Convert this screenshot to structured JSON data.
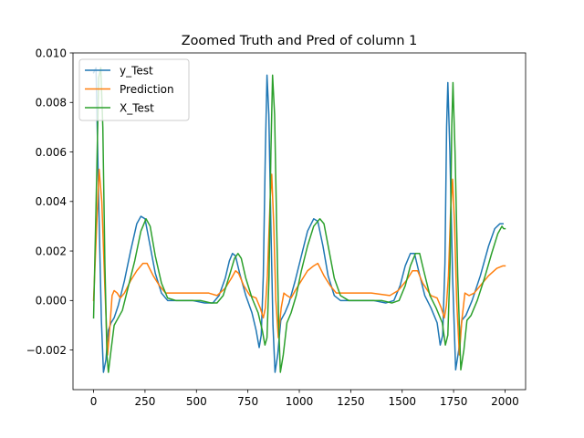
{
  "chart_data": {
    "type": "line",
    "title": "Zoomed Truth and Pred of column 1",
    "xlabel": "",
    "ylabel": "",
    "xlim": [
      -100,
      2100
    ],
    "ylim": [
      -0.0036,
      0.01
    ],
    "xticks": [
      0,
      250,
      500,
      750,
      1000,
      1250,
      1500,
      1750,
      2000
    ],
    "xtick_labels": [
      "0",
      "250",
      "500",
      "750",
      "1000",
      "1250",
      "1500",
      "1750",
      "2000"
    ],
    "yticks": [
      -0.002,
      0.0,
      0.002,
      0.004,
      0.006,
      0.008,
      0.01
    ],
    "ytick_labels": [
      "−0.002",
      "0.000",
      "0.002",
      "0.004",
      "0.006",
      "0.008",
      "0.010"
    ],
    "grid": false,
    "legend_position": "top-left",
    "series": [
      {
        "name": "y_Test",
        "color": "#1f77b4",
        "points": [
          [
            0,
            0.0092
          ],
          [
            12,
            0.0094
          ],
          [
            25,
            0.004
          ],
          [
            38,
            -0.0008
          ],
          [
            48,
            -0.0029
          ],
          [
            60,
            -0.0024
          ],
          [
            72,
            -0.0012
          ],
          [
            85,
            -0.0009
          ],
          [
            100,
            -0.0007
          ],
          [
            120,
            -0.0002
          ],
          [
            150,
            0.0008
          ],
          [
            180,
            0.002
          ],
          [
            210,
            0.0031
          ],
          [
            230,
            0.0034
          ],
          [
            250,
            0.0033
          ],
          [
            275,
            0.0022
          ],
          [
            300,
            0.0011
          ],
          [
            330,
            0.0003
          ],
          [
            360,
            0.0
          ],
          [
            420,
            0.0
          ],
          [
            480,
            0.0
          ],
          [
            540,
            -0.0001
          ],
          [
            580,
            -0.0001
          ],
          [
            610,
            0.0002
          ],
          [
            640,
            0.0009
          ],
          [
            660,
            0.0016
          ],
          [
            675,
            0.0019
          ],
          [
            690,
            0.0018
          ],
          [
            710,
            0.0011
          ],
          [
            740,
            0.0002
          ],
          [
            770,
            -0.0005
          ],
          [
            790,
            -0.0012
          ],
          [
            805,
            -0.0019
          ],
          [
            815,
            -0.0014
          ],
          [
            825,
            0.001
          ],
          [
            835,
            0.006
          ],
          [
            843,
            0.0091
          ],
          [
            852,
            0.0075
          ],
          [
            862,
            0.003
          ],
          [
            872,
            -0.001
          ],
          [
            882,
            -0.0029
          ],
          [
            895,
            -0.0022
          ],
          [
            910,
            -0.0008
          ],
          [
            930,
            -0.0005
          ],
          [
            950,
            -0.0001
          ],
          [
            980,
            0.0008
          ],
          [
            1010,
            0.0018
          ],
          [
            1040,
            0.0028
          ],
          [
            1070,
            0.0033
          ],
          [
            1090,
            0.0032
          ],
          [
            1115,
            0.0022
          ],
          [
            1140,
            0.001
          ],
          [
            1170,
            0.0002
          ],
          [
            1200,
            0.0
          ],
          [
            1280,
            0.0
          ],
          [
            1360,
            0.0
          ],
          [
            1420,
            -0.0001
          ],
          [
            1460,
            0.0
          ],
          [
            1490,
            0.0006
          ],
          [
            1515,
            0.0014
          ],
          [
            1540,
            0.0019
          ],
          [
            1560,
            0.0019
          ],
          [
            1580,
            0.0012
          ],
          [
            1610,
            0.0002
          ],
          [
            1640,
            -0.0003
          ],
          [
            1670,
            -0.0009
          ],
          [
            1685,
            -0.0018
          ],
          [
            1697,
            -0.0014
          ],
          [
            1708,
            0.0015
          ],
          [
            1716,
            0.007
          ],
          [
            1722,
            0.0088
          ],
          [
            1732,
            0.006
          ],
          [
            1745,
            0.001
          ],
          [
            1760,
            -0.0028
          ],
          [
            1775,
            -0.002
          ],
          [
            1790,
            -0.0008
          ],
          [
            1810,
            -0.0006
          ],
          [
            1840,
            0.0
          ],
          [
            1880,
            0.001
          ],
          [
            1920,
            0.0022
          ],
          [
            1950,
            0.0029
          ],
          [
            1975,
            0.0031
          ],
          [
            1990,
            0.0031
          ]
        ]
      },
      {
        "name": "Prediction",
        "color": "#ff7f0e",
        "points": [
          [
            0,
            0.0
          ],
          [
            15,
            0.003
          ],
          [
            27,
            0.0053
          ],
          [
            40,
            0.004
          ],
          [
            55,
            0.0005
          ],
          [
            68,
            -0.0022
          ],
          [
            78,
            -0.0012
          ],
          [
            90,
            0.0002
          ],
          [
            100,
            0.0004
          ],
          [
            115,
            0.0003
          ],
          [
            130,
            0.0001
          ],
          [
            150,
            0.0003
          ],
          [
            180,
            0.0008
          ],
          [
            210,
            0.0012
          ],
          [
            240,
            0.0015
          ],
          [
            260,
            0.0015
          ],
          [
            290,
            0.001
          ],
          [
            320,
            0.0006
          ],
          [
            350,
            0.0003
          ],
          [
            400,
            0.0003
          ],
          [
            480,
            0.0003
          ],
          [
            560,
            0.0003
          ],
          [
            600,
            0.0002
          ],
          [
            640,
            0.0005
          ],
          [
            670,
            0.0009
          ],
          [
            690,
            0.0012
          ],
          [
            705,
            0.0011
          ],
          [
            730,
            0.0006
          ],
          [
            760,
            0.0002
          ],
          [
            790,
            0.0001
          ],
          [
            810,
            -0.0003
          ],
          [
            825,
            -0.0007
          ],
          [
            835,
            -0.0003
          ],
          [
            845,
            0.001
          ],
          [
            858,
            0.004
          ],
          [
            866,
            0.0051
          ],
          [
            876,
            0.003
          ],
          [
            886,
            0.0
          ],
          [
            898,
            -0.0015
          ],
          [
            912,
            -0.0003
          ],
          [
            925,
            0.0003
          ],
          [
            940,
            0.0002
          ],
          [
            960,
            0.0001
          ],
          [
            980,
            0.0004
          ],
          [
            1010,
            0.0008
          ],
          [
            1040,
            0.0012
          ],
          [
            1070,
            0.0014
          ],
          [
            1090,
            0.0015
          ],
          [
            1120,
            0.001
          ],
          [
            1150,
            0.0006
          ],
          [
            1180,
            0.0003
          ],
          [
            1250,
            0.0003
          ],
          [
            1350,
            0.0003
          ],
          [
            1440,
            0.0002
          ],
          [
            1480,
            0.0004
          ],
          [
            1520,
            0.0008
          ],
          [
            1550,
            0.0012
          ],
          [
            1575,
            0.0012
          ],
          [
            1600,
            0.0007
          ],
          [
            1640,
            0.0002
          ],
          [
            1670,
            0.0001
          ],
          [
            1690,
            -0.0003
          ],
          [
            1705,
            -0.0007
          ],
          [
            1715,
            -0.0002
          ],
          [
            1725,
            0.001
          ],
          [
            1735,
            0.0035
          ],
          [
            1745,
            0.0049
          ],
          [
            1755,
            0.003
          ],
          [
            1765,
            0.0
          ],
          [
            1778,
            -0.0022
          ],
          [
            1790,
            -0.0008
          ],
          [
            1805,
            0.0003
          ],
          [
            1825,
            0.0002
          ],
          [
            1850,
            0.0003
          ],
          [
            1880,
            0.0006
          ],
          [
            1920,
            0.001
          ],
          [
            1960,
            0.0013
          ],
          [
            1990,
            0.0014
          ],
          [
            2000,
            0.0014
          ]
        ]
      },
      {
        "name": "X_Test",
        "color": "#2ca02c",
        "points": [
          [
            0,
            -0.0007
          ],
          [
            15,
            0.005
          ],
          [
            25,
            0.009
          ],
          [
            35,
            0.0094
          ],
          [
            45,
            0.007
          ],
          [
            55,
            0.0015
          ],
          [
            65,
            -0.0022
          ],
          [
            72,
            -0.0029
          ],
          [
            85,
            -0.002
          ],
          [
            100,
            -0.001
          ],
          [
            120,
            -0.0007
          ],
          [
            140,
            -0.0004
          ],
          [
            170,
            0.0006
          ],
          [
            200,
            0.0016
          ],
          [
            230,
            0.0028
          ],
          [
            255,
            0.0033
          ],
          [
            275,
            0.003
          ],
          [
            300,
            0.0018
          ],
          [
            330,
            0.0007
          ],
          [
            360,
            0.0001
          ],
          [
            400,
            0.0
          ],
          [
            460,
            0.0
          ],
          [
            520,
            0.0
          ],
          [
            570,
            -0.0001
          ],
          [
            600,
            -0.0001
          ],
          [
            630,
            0.0002
          ],
          [
            660,
            0.001
          ],
          [
            685,
            0.0017
          ],
          [
            702,
            0.0019
          ],
          [
            718,
            0.0017
          ],
          [
            740,
            0.0009
          ],
          [
            770,
            0.0001
          ],
          [
            800,
            -0.0005
          ],
          [
            820,
            -0.0012
          ],
          [
            833,
            -0.0018
          ],
          [
            843,
            -0.0015
          ],
          [
            853,
            0.001
          ],
          [
            862,
            0.006
          ],
          [
            870,
            0.0091
          ],
          [
            880,
            0.0075
          ],
          [
            890,
            0.003
          ],
          [
            900,
            -0.001
          ],
          [
            908,
            -0.0029
          ],
          [
            922,
            -0.0022
          ],
          [
            940,
            -0.0009
          ],
          [
            960,
            -0.0005
          ],
          [
            985,
            0.0002
          ],
          [
            1010,
            0.0012
          ],
          [
            1040,
            0.0022
          ],
          [
            1070,
            0.003
          ],
          [
            1100,
            0.0033
          ],
          [
            1120,
            0.0031
          ],
          [
            1145,
            0.002
          ],
          [
            1170,
            0.0009
          ],
          [
            1200,
            0.0002
          ],
          [
            1240,
            0.0
          ],
          [
            1320,
            0.0
          ],
          [
            1400,
            0.0
          ],
          [
            1450,
            -0.0001
          ],
          [
            1485,
            0.0
          ],
          [
            1515,
            0.0006
          ],
          [
            1540,
            0.0014
          ],
          [
            1565,
            0.0019
          ],
          [
            1585,
            0.0019
          ],
          [
            1605,
            0.0012
          ],
          [
            1635,
            0.0002
          ],
          [
            1665,
            -0.0003
          ],
          [
            1695,
            -0.0009
          ],
          [
            1710,
            -0.0018
          ],
          [
            1722,
            -0.0014
          ],
          [
            1733,
            0.0015
          ],
          [
            1741,
            0.007
          ],
          [
            1747,
            0.0088
          ],
          [
            1757,
            0.006
          ],
          [
            1770,
            0.001
          ],
          [
            1785,
            -0.0028
          ],
          [
            1800,
            -0.002
          ],
          [
            1815,
            -0.0008
          ],
          [
            1835,
            -0.0006
          ],
          [
            1865,
            0.0
          ],
          [
            1900,
            0.0009
          ],
          [
            1935,
            0.0019
          ],
          [
            1965,
            0.0027
          ],
          [
            1985,
            0.003
          ],
          [
            1993,
            0.0029
          ],
          [
            2000,
            0.0029
          ]
        ]
      }
    ]
  }
}
